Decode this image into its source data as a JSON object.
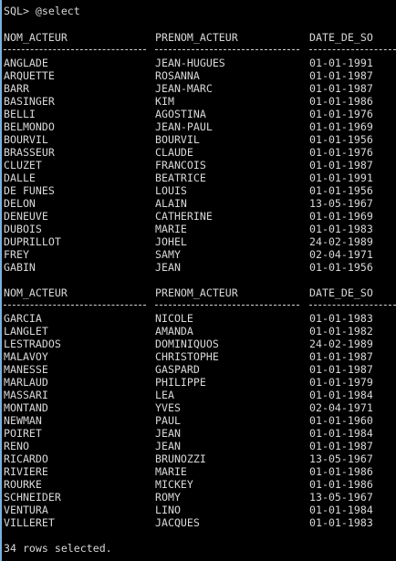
{
  "prompt_line": "SQL> @select",
  "headers": [
    "NOM_ACTEUR",
    "PRENOM_ACTEUR",
    "DATE_DE_SO"
  ],
  "block1": [
    [
      "ANGLADE",
      "JEAN-HUGUES",
      "01-01-1991"
    ],
    [
      "ARQUETTE",
      "ROSANNA",
      "01-01-1987"
    ],
    [
      "BARR",
      "JEAN-MARC",
      "01-01-1987"
    ],
    [
      "BASINGER",
      "KIM",
      "01-01-1986"
    ],
    [
      "BELLI",
      "AGOSTINA",
      "01-01-1976"
    ],
    [
      "BELMONDO",
      "JEAN-PAUL",
      "01-01-1969"
    ],
    [
      "BOURVIL",
      "BOURVIL",
      "01-01-1956"
    ],
    [
      "BRASSEUR",
      "CLAUDE",
      "01-01-1976"
    ],
    [
      "CLUZET",
      "FRANCOIS",
      "01-01-1987"
    ],
    [
      "DALLE",
      "BEATRICE",
      "01-01-1991"
    ],
    [
      "DE FUNES",
      "LOUIS",
      "01-01-1956"
    ],
    [
      "DELON",
      "ALAIN",
      "13-05-1967"
    ],
    [
      "DENEUVE",
      "CATHERINE",
      "01-01-1969"
    ],
    [
      "DUBOIS",
      "MARIE",
      "01-01-1983"
    ],
    [
      "DUPRILLOT",
      "JOHEL",
      "24-02-1989"
    ],
    [
      "FREY",
      "SAMY",
      "02-04-1971"
    ],
    [
      "GABIN",
      "JEAN",
      "01-01-1956"
    ]
  ],
  "block2": [
    [
      "GARCIA",
      "NICOLE",
      "01-01-1983"
    ],
    [
      "LANGLET",
      "AMANDA",
      "01-01-1982"
    ],
    [
      "LESTRADOS",
      "DOMINIQUOS",
      "24-02-1989"
    ],
    [
      "MALAVOY",
      "CHRISTOPHE",
      "01-01-1987"
    ],
    [
      "MANESSE",
      "GASPARD",
      "01-01-1987"
    ],
    [
      "MARLAUD",
      "PHILIPPE",
      "01-01-1979"
    ],
    [
      "MASSARI",
      "LEA",
      "01-01-1984"
    ],
    [
      "MONTAND",
      "YVES",
      "02-04-1971"
    ],
    [
      "NEWMAN",
      "PAUL",
      "01-01-1960"
    ],
    [
      "POIRET",
      "JEAN",
      "01-01-1984"
    ],
    [
      "RENO",
      "JEAN",
      "01-01-1987"
    ],
    [
      "RICARDO",
      "BRUNOZZI",
      "13-05-1967"
    ],
    [
      "RIVIERE",
      "MARIE",
      "01-01-1986"
    ],
    [
      "ROURKE",
      "MICKEY",
      "01-01-1986"
    ],
    [
      "SCHNEIDER",
      "ROMY",
      "13-05-1967"
    ],
    [
      "VENTURA",
      "LINO",
      "01-01-1984"
    ],
    [
      "VILLERET",
      "JACQUES",
      "01-01-1983"
    ]
  ],
  "footer": "34 rows selected."
}
